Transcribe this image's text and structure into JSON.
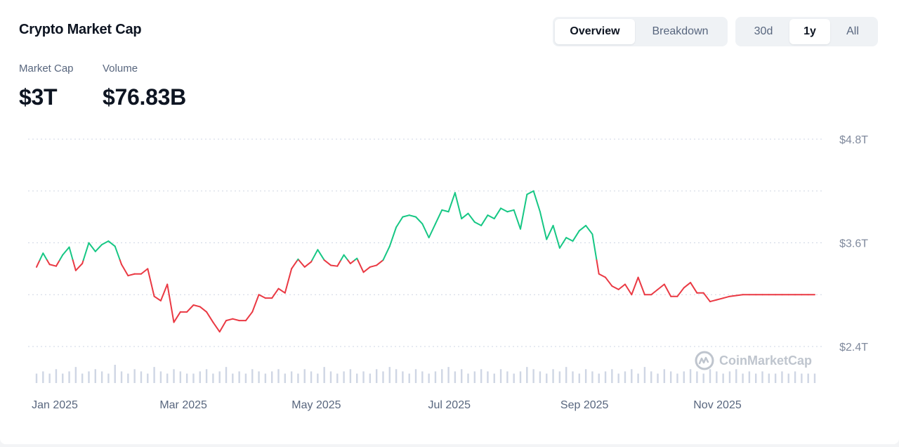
{
  "header": {
    "title": "Crypto Market Cap"
  },
  "view_toggle": {
    "options": [
      "Overview",
      "Breakdown"
    ],
    "selected": "Overview"
  },
  "range_toggle": {
    "options": [
      "30d",
      "1y",
      "All"
    ],
    "selected": "1y"
  },
  "stats": {
    "market_cap_label": "Market Cap",
    "market_cap_value": "$3T",
    "volume_label": "Volume",
    "volume_value": "$76.83B"
  },
  "watermark": {
    "text": "CoinMarketCap"
  },
  "colors": {
    "up": "#16c784",
    "down": "#ea3943",
    "grid": "#cfd6e4",
    "volume": "#cfd6e4"
  },
  "chart_data": {
    "type": "line",
    "title": "",
    "xlabel": "",
    "ylabel": "",
    "x_tick_labels": [
      "Jan 2025",
      "Mar 2025",
      "May 2025",
      "Jul 2025",
      "Sep 2025",
      "Nov 2025"
    ],
    "y_tick_labels": [
      "$4.8T",
      "$3.6T",
      "$2.4T"
    ],
    "y_ticks": [
      4.8,
      3.6,
      2.4
    ],
    "gridlines": [
      4.8,
      4.2,
      3.6,
      3.0,
      2.4
    ],
    "ylim": [
      2.4,
      4.8
    ],
    "grid": true,
    "baseline": 3.4,
    "series": [
      {
        "x": [
          "2025-01-01",
          "2025-01-04",
          "2025-01-07",
          "2025-01-10",
          "2025-01-13",
          "2025-01-16",
          "2025-01-19",
          "2025-01-22",
          "2025-01-25",
          "2025-01-28",
          "2025-01-31",
          "2025-02-03",
          "2025-02-06",
          "2025-02-09",
          "2025-02-12",
          "2025-02-15",
          "2025-02-18",
          "2025-02-21",
          "2025-02-24",
          "2025-02-27",
          "2025-03-02",
          "2025-03-05",
          "2025-03-08",
          "2025-03-11",
          "2025-03-14",
          "2025-03-17",
          "2025-03-20",
          "2025-03-23",
          "2025-03-26",
          "2025-03-29",
          "2025-04-01",
          "2025-04-04",
          "2025-04-07",
          "2025-04-10",
          "2025-04-13",
          "2025-04-16",
          "2025-04-19",
          "2025-04-22",
          "2025-04-25",
          "2025-04-28",
          "2025-05-01",
          "2025-05-04",
          "2025-05-07",
          "2025-05-10",
          "2025-05-13",
          "2025-05-16",
          "2025-05-19",
          "2025-05-22",
          "2025-05-25",
          "2025-05-28",
          "2025-05-31",
          "2025-06-03",
          "2025-06-06",
          "2025-06-09",
          "2025-06-12",
          "2025-06-15",
          "2025-06-18",
          "2025-06-21",
          "2025-06-24",
          "2025-06-27",
          "2025-06-30",
          "2025-07-03",
          "2025-07-06",
          "2025-07-09",
          "2025-07-12",
          "2025-07-15",
          "2025-07-18",
          "2025-07-21",
          "2025-07-24",
          "2025-07-27",
          "2025-07-30",
          "2025-08-02",
          "2025-08-05",
          "2025-08-08",
          "2025-08-11",
          "2025-08-14",
          "2025-08-17",
          "2025-08-20",
          "2025-08-23",
          "2025-08-26",
          "2025-08-29",
          "2025-09-01",
          "2025-09-04",
          "2025-09-07",
          "2025-09-10",
          "2025-09-13",
          "2025-09-16",
          "2025-09-19",
          "2025-09-22",
          "2025-09-25",
          "2025-09-28",
          "2025-10-01",
          "2025-10-04",
          "2025-10-07",
          "2025-10-10",
          "2025-10-13",
          "2025-10-16",
          "2025-10-19",
          "2025-10-22",
          "2025-10-25",
          "2025-10-28",
          "2025-10-31",
          "2025-11-03",
          "2025-11-06",
          "2025-11-09",
          "2025-11-12",
          "2025-11-15",
          "2025-11-18",
          "2025-11-21",
          "2025-11-24",
          "2025-11-27",
          "2025-11-30",
          "2025-12-03",
          "2025-12-06",
          "2025-12-09",
          "2025-12-12",
          "2025-12-15",
          "2025-12-18",
          "2025-12-21",
          "2025-12-24"
        ],
        "y": [
          3.32,
          3.48,
          3.35,
          3.33,
          3.46,
          3.55,
          3.28,
          3.36,
          3.6,
          3.5,
          3.58,
          3.62,
          3.56,
          3.35,
          3.22,
          3.24,
          3.24,
          3.3,
          2.98,
          2.93,
          3.12,
          2.68,
          2.8,
          2.8,
          2.88,
          2.86,
          2.8,
          2.68,
          2.57,
          2.7,
          2.72,
          2.7,
          2.7,
          2.8,
          3.0,
          2.96,
          2.96,
          3.07,
          3.02,
          3.3,
          3.41,
          3.32,
          3.38,
          3.52,
          3.4,
          3.34,
          3.33,
          3.46,
          3.36,
          3.42,
          3.26,
          3.32,
          3.34,
          3.4,
          3.56,
          3.78,
          3.9,
          3.92,
          3.9,
          3.82,
          3.66,
          3.82,
          3.98,
          3.96,
          4.18,
          3.88,
          3.94,
          3.84,
          3.8,
          3.92,
          3.88,
          4.0,
          3.96,
          3.98,
          3.76,
          4.16,
          4.2,
          3.96,
          3.64,
          3.8,
          3.54,
          3.66,
          3.62,
          3.74,
          3.8,
          3.7,
          3.24,
          3.2,
          3.1,
          3.06,
          3.12,
          3.0,
          3.2,
          3.0,
          3.0,
          3.06,
          3.12,
          2.98,
          2.98,
          3.08,
          3.14,
          3.02,
          3.02,
          2.92,
          2.94,
          2.96,
          2.98,
          2.99,
          3.0,
          3.0,
          3.0,
          3.0,
          3.0,
          3.0,
          3.0,
          3.0,
          3.0,
          3.0,
          3.0,
          3.0
        ]
      }
    ],
    "volume": [
      3,
      4,
      3,
      5,
      3,
      4,
      6,
      3,
      4,
      5,
      4,
      3,
      7,
      4,
      3,
      5,
      4,
      3,
      6,
      4,
      3,
      5,
      4,
      3,
      3,
      4,
      5,
      3,
      4,
      6,
      3,
      4,
      3,
      5,
      4,
      3,
      4,
      5,
      3,
      4,
      3,
      5,
      4,
      3,
      6,
      4,
      3,
      4,
      5,
      3,
      4,
      3,
      5,
      4,
      6,
      5,
      4,
      3,
      5,
      4,
      3,
      4,
      5,
      6,
      4,
      5,
      3,
      4,
      5,
      4,
      3,
      5,
      4,
      3,
      4,
      6,
      5,
      4,
      3,
      5,
      4,
      6,
      4,
      3,
      5,
      4,
      3,
      4,
      5,
      3,
      4,
      5,
      3,
      6,
      4,
      3,
      5,
      4,
      3,
      4,
      5,
      4,
      3,
      5,
      4,
      3,
      4,
      5,
      3,
      4,
      3,
      4,
      3,
      3,
      4,
      3,
      4,
      3,
      3,
      3
    ]
  }
}
